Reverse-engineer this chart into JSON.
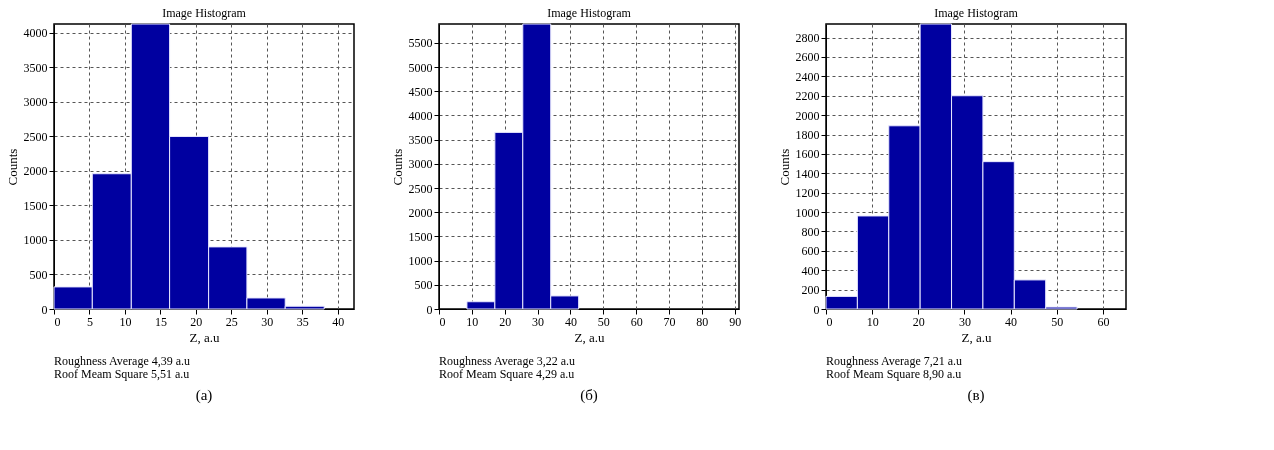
{
  "chart_data": [
    {
      "type": "histogram",
      "title": "Image Histogram",
      "xlabel": "Z, a.u",
      "ylabel": "Counts",
      "color": "#0000a0",
      "grid": true,
      "bins": [
        0,
        5.4,
        10.9,
        16.3,
        21.8,
        27.2,
        32.6,
        38.1
      ],
      "values": [
        320,
        1960,
        4130,
        2500,
        900,
        160,
        40
      ],
      "xlim": [
        0,
        42.3
      ],
      "ylim": [
        0,
        4130
      ],
      "xticks": [
        0,
        5,
        10,
        15,
        20,
        25,
        30,
        35,
        40
      ],
      "yticks": [
        0,
        500,
        1000,
        1500,
        2000,
        2500,
        3000,
        3500,
        4000
      ],
      "annotations": [
        "Roughness Average   4,39 a.u",
        "Roof Meam Square     5,51 a.u",
        "(a)"
      ]
    },
    {
      "type": "histogram",
      "title": "Image Histogram",
      "xlabel": "Z, a.u",
      "ylabel": "Counts",
      "color": "#0000a0",
      "grid": true,
      "bins": [
        8.5,
        17,
        25.5,
        34,
        42.5
      ],
      "values": [
        150,
        3650,
        5890,
        270
      ],
      "xlim": [
        0,
        91.3
      ],
      "ylim": [
        0,
        5890
      ],
      "xticks": [
        0,
        10,
        20,
        30,
        40,
        50,
        60,
        70,
        80,
        90
      ],
      "yticks": [
        0,
        500,
        1000,
        1500,
        2000,
        2500,
        3000,
        3500,
        4000,
        4500,
        5000,
        5500
      ],
      "annotations": [
        "Roughness Average   3,22 a.u",
        "Roof Meam Square     4,29 a.u",
        "(б)"
      ]
    },
    {
      "type": "histogram",
      "title": "Image Histogram",
      "xlabel": "Z, a.u",
      "ylabel": "Counts",
      "color": "#0000a0",
      "grid": true,
      "bins": [
        0,
        6.8,
        13.6,
        20.4,
        27.2,
        34,
        40.8,
        47.6,
        54.4
      ],
      "values": [
        130,
        960,
        1890,
        2940,
        2200,
        1520,
        300,
        20
      ],
      "xlim": [
        0,
        65
      ],
      "ylim": [
        0,
        2940
      ],
      "xticks": [
        0,
        10,
        20,
        30,
        40,
        50,
        60
      ],
      "yticks": [
        0,
        200,
        400,
        600,
        800,
        1000,
        1200,
        1400,
        1600,
        1800,
        2000,
        2200,
        2400,
        2600,
        2800
      ],
      "annotations": [
        "Roughness Average   7,21 a.u",
        "Roof Meam Square     8,90 a.u",
        "(в)"
      ]
    }
  ]
}
